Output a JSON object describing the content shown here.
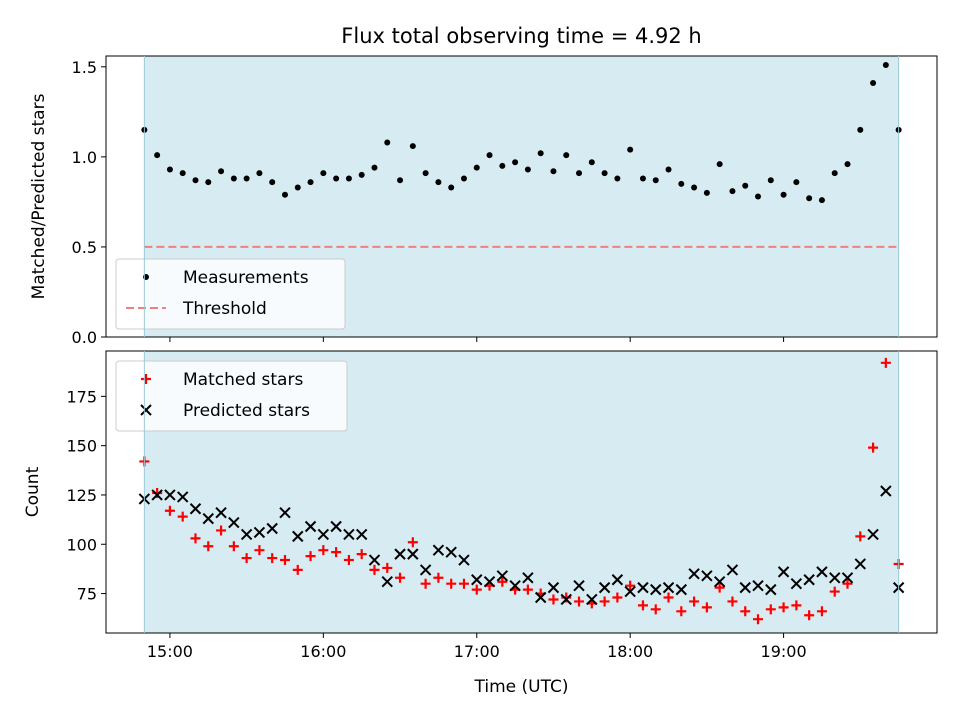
{
  "chart_data": [
    {
      "type": "scatter",
      "title": "Flux total observing time = 4.92 h",
      "xlabel": "",
      "ylabel": "Matched/Predicted stars",
      "xlim": [
        "14:35",
        "20:00"
      ],
      "ylim": [
        0,
        1.56
      ],
      "yticks": [
        0.0,
        0.5,
        1.0,
        1.5
      ],
      "ytick_labels": [
        "0.0",
        "0.5",
        "1.0",
        "1.5"
      ],
      "observing_window": [
        "14:50",
        "19:45"
      ],
      "window_color": "#add8e6",
      "legend": {
        "location": "lower-left",
        "entries": [
          "Measurements",
          "Threshold"
        ]
      },
      "series": [
        {
          "name": "Measurements",
          "marker": "dot",
          "color": "#000000",
          "x": [
            "14:50",
            "14:55",
            "15:00",
            "15:05",
            "15:10",
            "15:15",
            "15:20",
            "15:25",
            "15:30",
            "15:35",
            "15:40",
            "15:45",
            "15:50",
            "15:55",
            "16:00",
            "16:05",
            "16:10",
            "16:15",
            "16:20",
            "16:25",
            "16:30",
            "16:35",
            "16:40",
            "16:45",
            "16:50",
            "16:55",
            "17:00",
            "17:05",
            "17:10",
            "17:15",
            "17:20",
            "17:25",
            "17:30",
            "17:35",
            "17:40",
            "17:45",
            "17:50",
            "17:55",
            "18:00",
            "18:05",
            "18:10",
            "18:15",
            "18:20",
            "18:25",
            "18:30",
            "18:35",
            "18:40",
            "18:45",
            "18:50",
            "18:55",
            "19:00",
            "19:05",
            "19:10",
            "19:15",
            "19:20",
            "19:25",
            "19:30",
            "19:35",
            "19:40",
            "19:45"
          ],
          "y": [
            1.15,
            1.01,
            0.93,
            0.91,
            0.87,
            0.86,
            0.92,
            0.88,
            0.88,
            0.91,
            0.86,
            0.79,
            0.83,
            0.86,
            0.91,
            0.88,
            0.88,
            0.9,
            0.94,
            1.08,
            0.87,
            1.06,
            0.91,
            0.86,
            0.83,
            0.88,
            0.94,
            1.01,
            0.95,
            0.97,
            0.93,
            1.02,
            0.92,
            1.01,
            0.91,
            0.97,
            0.91,
            0.88,
            1.04,
            0.88,
            0.87,
            0.93,
            0.85,
            0.83,
            0.8,
            0.96,
            0.81,
            0.84,
            0.78,
            0.87,
            0.79,
            0.86,
            0.77,
            0.76,
            0.91,
            0.96,
            1.15,
            1.41,
            1.51,
            1.15
          ]
        },
        {
          "name": "Threshold",
          "marker": "dashed-line",
          "color": "#f08080",
          "y": 0.5
        }
      ]
    },
    {
      "type": "scatter",
      "title": "",
      "xlabel": "Time (UTC)",
      "ylabel": "Count",
      "xlim": [
        "14:35",
        "20:00"
      ],
      "ylim": [
        55,
        198
      ],
      "yticks": [
        75,
        100,
        125,
        150,
        175
      ],
      "ytick_labels": [
        "75",
        "100",
        "125",
        "150",
        "175"
      ],
      "xticks": [
        "15:00",
        "16:00",
        "17:00",
        "18:00",
        "19:00"
      ],
      "xtick_labels": [
        "15:00",
        "16:00",
        "17:00",
        "18:00",
        "19:00"
      ],
      "observing_window": [
        "14:50",
        "19:45"
      ],
      "window_color": "#add8e6",
      "legend": {
        "location": "upper-left",
        "entries": [
          "Matched stars",
          "Predicted stars"
        ]
      },
      "series": [
        {
          "name": "Matched stars",
          "marker": "plus",
          "color": "#ff0000",
          "x": [
            "14:50",
            "14:55",
            "15:00",
            "15:05",
            "15:10",
            "15:15",
            "15:20",
            "15:25",
            "15:30",
            "15:35",
            "15:40",
            "15:45",
            "15:50",
            "15:55",
            "16:00",
            "16:05",
            "16:10",
            "16:15",
            "16:20",
            "16:25",
            "16:30",
            "16:35",
            "16:40",
            "16:45",
            "16:50",
            "16:55",
            "17:00",
            "17:05",
            "17:10",
            "17:15",
            "17:20",
            "17:25",
            "17:30",
            "17:35",
            "17:40",
            "17:45",
            "17:50",
            "17:55",
            "18:00",
            "18:05",
            "18:10",
            "18:15",
            "18:20",
            "18:25",
            "18:30",
            "18:35",
            "18:40",
            "18:45",
            "18:50",
            "18:55",
            "19:00",
            "19:05",
            "19:10",
            "19:15",
            "19:20",
            "19:25",
            "19:30",
            "19:35",
            "19:40",
            "19:45"
          ],
          "y": [
            142,
            126,
            117,
            114,
            103,
            99,
            107,
            99,
            93,
            97,
            93,
            92,
            87,
            94,
            97,
            96,
            92,
            95,
            87,
            88,
            83,
            101,
            80,
            83,
            80,
            80,
            77,
            79,
            81,
            77,
            77,
            75,
            72,
            73,
            71,
            70,
            71,
            73,
            79,
            69,
            67,
            73,
            66,
            71,
            68,
            78,
            71,
            66,
            62,
            67,
            68,
            69,
            64,
            66,
            76,
            80,
            104,
            149,
            192,
            90
          ]
        },
        {
          "name": "Predicted stars",
          "marker": "x",
          "color": "#000000",
          "x": [
            "14:50",
            "14:55",
            "15:00",
            "15:05",
            "15:10",
            "15:15",
            "15:20",
            "15:25",
            "15:30",
            "15:35",
            "15:40",
            "15:45",
            "15:50",
            "15:55",
            "16:00",
            "16:05",
            "16:10",
            "16:15",
            "16:20",
            "16:25",
            "16:30",
            "16:35",
            "16:40",
            "16:45",
            "16:50",
            "16:55",
            "17:00",
            "17:05",
            "17:10",
            "17:15",
            "17:20",
            "17:25",
            "17:30",
            "17:35",
            "17:40",
            "17:45",
            "17:50",
            "17:55",
            "18:00",
            "18:05",
            "18:10",
            "18:15",
            "18:20",
            "18:25",
            "18:30",
            "18:35",
            "18:40",
            "18:45",
            "18:50",
            "18:55",
            "19:00",
            "19:05",
            "19:10",
            "19:15",
            "19:20",
            "19:25",
            "19:30",
            "19:35",
            "19:40",
            "19:45"
          ],
          "y": [
            123,
            125,
            125,
            124,
            118,
            113,
            116,
            111,
            105,
            106,
            108,
            116,
            104,
            109,
            105,
            109,
            105,
            105,
            92,
            81,
            95,
            95,
            87,
            97,
            96,
            92,
            82,
            81,
            84,
            79,
            83,
            73,
            78,
            72,
            79,
            72,
            78,
            82,
            76,
            78,
            77,
            78,
            77,
            85,
            84,
            81,
            87,
            78,
            79,
            77,
            86,
            80,
            82,
            86,
            83,
            83,
            90,
            105,
            127,
            78
          ]
        }
      ]
    }
  ]
}
